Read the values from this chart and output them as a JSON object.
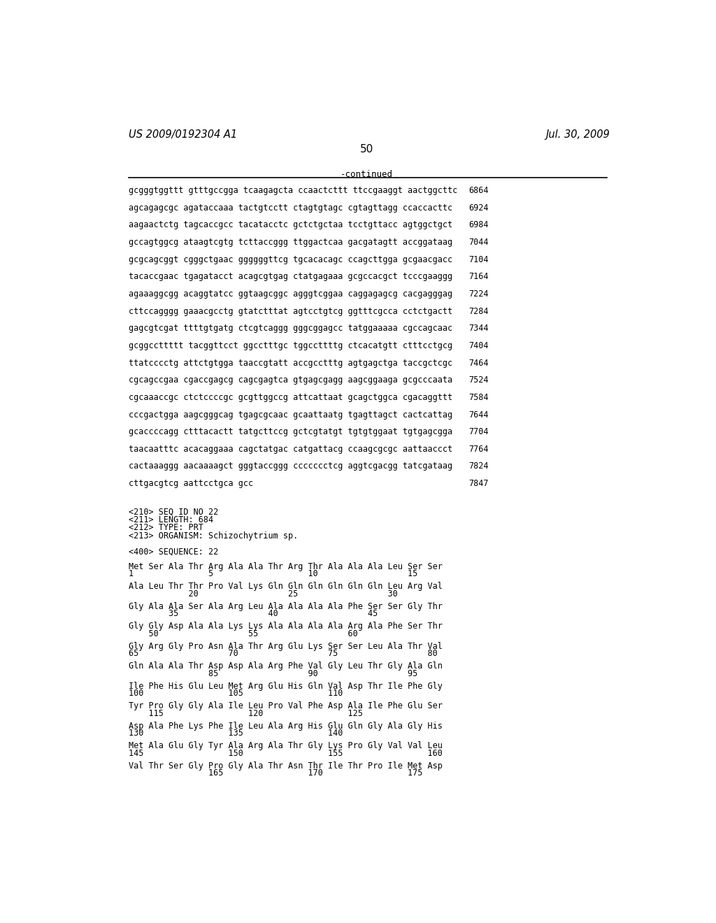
{
  "header_left": "US 2009/0192304 A1",
  "header_right": "Jul. 30, 2009",
  "page_number": "50",
  "continued_label": "-continued",
  "background_color": "#ffffff",
  "text_color": "#000000",
  "sequence_lines": [
    [
      "gcgggtggttt gtttgccgga tcaagagcta ccaactcttt ttccgaaggt aactggcttc",
      "6864"
    ],
    [
      "agcagagcgc agataccaaa tactgtcctt ctagtgtagc cgtagttagg ccaccacttc",
      "6924"
    ],
    [
      "aagaactctg tagcaccgcc tacatacctc gctctgctaa tcctgttacc agtggctgct",
      "6984"
    ],
    [
      "gccagtggcg ataagtcgtg tcttaccggg ttggactcaa gacgatagtt accggataag",
      "7044"
    ],
    [
      "gcgcagcggt cgggctgaac ggggggttcg tgcacacagc ccagcttgga gcgaacgacc",
      "7104"
    ],
    [
      "tacaccgaac tgagatacct acagcgtgag ctatgagaaa gcgccacgct tcccgaaggg",
      "7164"
    ],
    [
      "agaaaggcgg acaggtatcc ggtaagcggc agggtcggaa caggagagcg cacgagggag",
      "7224"
    ],
    [
      "cttccagggg gaaacgcctg gtatctttat agtcctgtcg ggtttcgcca cctctgactt",
      "7284"
    ],
    [
      "gagcgtcgat ttttgtgatg ctcgtcaggg gggcggagcc tatggaaaaa cgccagcaac",
      "7344"
    ],
    [
      "gcggccttttt tacggttcct ggcctttgc tggccttttg ctcacatgtt ctttcctgcg",
      "7404"
    ],
    [
      "ttatcccctg attctgtgga taaccgtatt accgcctttg agtgagctga taccgctcgc",
      "7464"
    ],
    [
      "cgcagccgaa cgaccgagcg cagcgagtca gtgagcgagg aagcggaaga gcgcccaata",
      "7524"
    ],
    [
      "cgcaaaccgc ctctccccgc gcgttggccg attcattaat gcagctggca cgacaggttt",
      "7584"
    ],
    [
      "cccgactgga aagcgggcag tgagcgcaac gcaattaatg tgagttagct cactcattag",
      "7644"
    ],
    [
      "gcaccccagg ctttacactt tatgcttccg gctcgtatgt tgtgtggaat tgtgagcgga",
      "7704"
    ],
    [
      "taacaatttc acacaggaaa cagctatgac catgattacg ccaagcgcgc aattaaccct",
      "7764"
    ],
    [
      "cactaaaggg aacaaaagct gggtaccggg ccccccctcg aggtcgacgg tatcgataag",
      "7824"
    ],
    [
      "cttgacgtcg aattcctgca gcc",
      "7847"
    ]
  ],
  "metadata_lines": [
    "<210> SEQ ID NO 22",
    "<211> LENGTH: 684",
    "<212> TYPE: PRT",
    "<213> ORGANISM: Schizochytrium sp."
  ],
  "sequence_label": "<400> SEQUENCE: 22",
  "protein_blocks": [
    {
      "seq": "Met Ser Ala Thr Arg Ala Ala Thr Arg Thr Ala Ala Ala Leu Ser Ser",
      "num": "1               5                   10                  15"
    },
    {
      "seq": "Ala Leu Thr Thr Pro Val Lys Gln Gln Gln Gln Gln Gln Leu Arg Val",
      "num": "            20                  25                  30"
    },
    {
      "seq": "Gly Ala Ala Ser Ala Arg Leu Ala Ala Ala Ala Phe Ser Ser Gly Thr",
      "num": "        35                  40                  45"
    },
    {
      "seq": "Gly Gly Asp Ala Ala Lys Lys Ala Ala Ala Ala Arg Ala Phe Ser Thr",
      "num": "    50                  55                  60"
    },
    {
      "seq": "Gly Arg Gly Pro Asn Ala Thr Arg Glu Lys Ser Ser Leu Ala Thr Val",
      "num": "65                  70                  75                  80"
    },
    {
      "seq": "Gln Ala Ala Thr Asp Asp Ala Arg Phe Val Gly Leu Thr Gly Ala Gln",
      "num": "                85                  90                  95"
    },
    {
      "seq": "Ile Phe His Glu Leu Met Arg Glu His Gln Val Asp Thr Ile Phe Gly",
      "num": "100                 105                 110"
    },
    {
      "seq": "Tyr Pro Gly Gly Ala Ile Leu Pro Val Phe Asp Ala Ile Phe Glu Ser",
      "num": "    115                 120                 125"
    },
    {
      "seq": "Asp Ala Phe Lys Phe Ile Leu Ala Arg His Glu Gln Gly Ala Gly His",
      "num": "130                 135                 140"
    },
    {
      "seq": "Met Ala Glu Gly Tyr Ala Arg Ala Thr Gly Lys Pro Gly Val Val Leu",
      "num": "145                 150                 155                 160"
    },
    {
      "seq": "Val Thr Ser Gly Pro Gly Ala Thr Asn Thr Ile Thr Pro Ile Met Asp",
      "num": "                165                 170                 175"
    }
  ]
}
